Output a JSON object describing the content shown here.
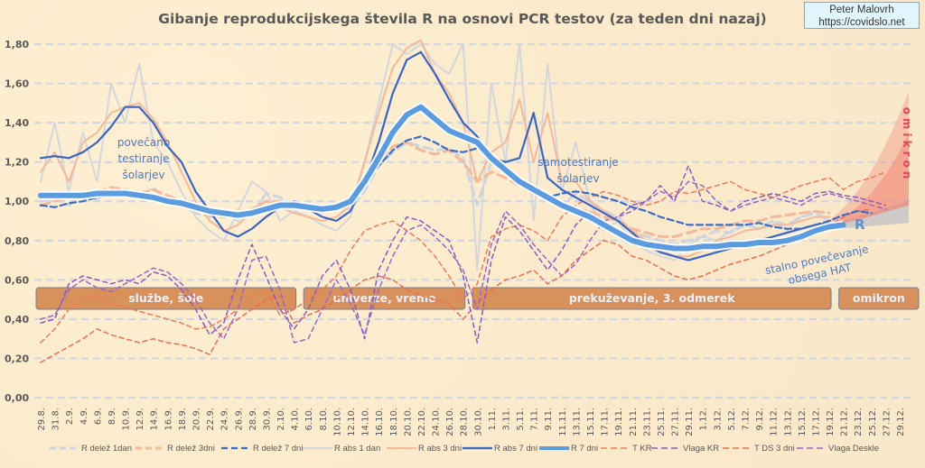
{
  "credit": {
    "author": "Peter Malovrh",
    "url": "https://covidslo.net"
  },
  "chart_data": {
    "type": "line",
    "title": "Gibanje reprodukcijskega števila R na osnovi PCR testov (za teden dni nazaj)",
    "xlabel": "",
    "ylabel": "",
    "ylim": [
      0,
      1.8
    ],
    "y_ticks": [
      "0,00",
      "0,20",
      "0,40",
      "0,60",
      "0,80",
      "1,00",
      "1,20",
      "1,40",
      "1,60",
      "1,80"
    ],
    "grid": true,
    "legend_position": "bottom",
    "x_tick_labels": [
      "29.8.",
      "31.8.",
      "2.9.",
      "4.9.",
      "6.9.",
      "8.9.",
      "10.9.",
      "12.9.",
      "14.9.",
      "16.9.",
      "18.9.",
      "20.9.",
      "22.9.",
      "24.9.",
      "26.9.",
      "28.9.",
      "30.9.",
      "2.10.",
      "4.10.",
      "6.10.",
      "8.10.",
      "10.10.",
      "12.10.",
      "14.10.",
      "16.10.",
      "18.10.",
      "20.10.",
      "22.10.",
      "24.10.",
      "26.10.",
      "28.10.",
      "30.10.",
      "1.11.",
      "3.11.",
      "5.11.",
      "7.11.",
      "9.11.",
      "11.11.",
      "13.11.",
      "15.11.",
      "17.11.",
      "19.11.",
      "21.11.",
      "23.11.",
      "25.11.",
      "27.11.",
      "29.11.",
      "1.12.",
      "3.12.",
      "5.12.",
      "7.12.",
      "9.12.",
      "11.12.",
      "13.12.",
      "15.12.",
      "17.12.",
      "19.12.",
      "21.12.",
      "23.12.",
      "25.12.",
      "27.12.",
      "29.12."
    ],
    "data_x_index_note": "values sampled every 2 days, aligned with x_tick_labels; null = no data",
    "series": [
      {
        "name": "R delež 1dan",
        "style": "dashed",
        "color": "#cfd5e0",
        "values": [
          1.0,
          1.02,
          0.98,
          1.04,
          1.01,
          1.06,
          1.05,
          1.02,
          1.07,
          1.0,
          0.98,
          0.94,
          0.92,
          0.95,
          0.9,
          0.93,
          1.04,
          1.02,
          0.98,
          0.96,
          0.94,
          0.97,
          0.96,
          1.05,
          1.18,
          1.25,
          1.3,
          1.28,
          1.26,
          1.27,
          1.22,
          0.98,
          1.2,
          1.15,
          1.1,
          1.08,
          1.02,
          0.98,
          1.04,
          1.0,
          0.95,
          0.92,
          0.85,
          0.82,
          0.8,
          0.78,
          0.8,
          0.82,
          0.85,
          0.84,
          0.88,
          0.86,
          0.9,
          0.88,
          0.92,
          0.94,
          0.9,
          null,
          null,
          null,
          null,
          null
        ]
      },
      {
        "name": "R delež 3dni",
        "style": "dashed",
        "color": "#f4b89a",
        "values": [
          0.98,
          1.0,
          1.02,
          1.03,
          1.05,
          1.07,
          1.06,
          1.04,
          1.06,
          1.03,
          1.0,
          0.96,
          0.93,
          0.92,
          0.93,
          0.96,
          1.0,
          1.0,
          0.97,
          0.96,
          0.95,
          0.98,
          1.02,
          1.1,
          1.2,
          1.28,
          1.3,
          1.26,
          1.24,
          1.26,
          1.2,
          1.1,
          1.15,
          1.12,
          1.08,
          1.05,
          1.02,
          0.98,
          0.96,
          0.95,
          0.92,
          0.9,
          0.86,
          0.84,
          0.82,
          0.82,
          0.84,
          0.86,
          0.86,
          0.88,
          0.9,
          0.9,
          0.92,
          0.93,
          0.94,
          0.95,
          0.94,
          null,
          null,
          null,
          null,
          null
        ]
      },
      {
        "name": "R delež 7 dni",
        "style": "dashed",
        "color": "#3b6cc7",
        "values": [
          0.98,
          0.97,
          0.99,
          1.0,
          1.02,
          1.03,
          1.03,
          1.02,
          1.01,
          1.0,
          0.98,
          0.96,
          0.95,
          0.94,
          0.94,
          0.95,
          0.97,
          0.99,
          1.0,
          0.98,
          0.97,
          0.98,
          1.0,
          1.08,
          1.18,
          1.26,
          1.31,
          1.33,
          1.3,
          1.26,
          1.25,
          1.27,
          1.22,
          1.15,
          1.1,
          1.05,
          1.02,
          1.04,
          1.05,
          1.04,
          1.02,
          1.0,
          0.97,
          0.95,
          0.92,
          0.9,
          0.88,
          0.88,
          0.88,
          0.88,
          0.88,
          0.89,
          0.87,
          0.86,
          0.86,
          0.88,
          0.9,
          0.93,
          0.95,
          0.94,
          null,
          null
        ]
      },
      {
        "name": "R abs 1 dan",
        "style": "solid",
        "color": "#d3d6dc",
        "values": [
          1.1,
          1.4,
          1.05,
          1.35,
          1.1,
          1.6,
          1.4,
          1.7,
          1.3,
          1.2,
          1.05,
          0.92,
          0.85,
          0.8,
          0.95,
          1.1,
          1.05,
          0.9,
          0.95,
          0.92,
          0.88,
          0.85,
          0.92,
          1.2,
          1.5,
          1.8,
          1.75,
          1.8,
          1.7,
          1.65,
          1.8,
          0.65,
          1.6,
          1.2,
          1.8,
          0.9,
          1.7,
          1.05,
          1.3,
          1.0,
          0.85,
          0.9,
          0.8,
          0.75,
          0.72,
          0.7,
          0.78,
          0.82,
          0.8,
          0.85,
          0.88,
          0.86,
          0.9,
          0.85,
          0.92,
          0.95,
          0.9,
          null,
          null,
          null,
          null,
          null
        ]
      },
      {
        "name": "R abs 3 dni",
        "style": "solid",
        "color": "#f5b998",
        "values": [
          1.15,
          1.25,
          1.1,
          1.3,
          1.35,
          1.45,
          1.48,
          1.5,
          1.42,
          1.3,
          1.15,
          1.0,
          0.9,
          0.85,
          0.88,
          0.95,
          1.0,
          0.97,
          0.94,
          0.92,
          0.9,
          0.92,
          0.98,
          1.2,
          1.45,
          1.68,
          1.78,
          1.82,
          1.65,
          1.55,
          1.4,
          1.1,
          1.25,
          1.3,
          1.52,
          1.2,
          1.45,
          1.1,
          1.1,
          1.0,
          0.95,
          0.9,
          0.85,
          0.8,
          0.75,
          0.72,
          0.72,
          0.75,
          0.8,
          0.82,
          0.85,
          0.86,
          0.88,
          0.88,
          0.9,
          0.92,
          0.92,
          null,
          null,
          null,
          null,
          null
        ]
      },
      {
        "name": "R abs 7 dni",
        "style": "solid",
        "color": "#3b65c4",
        "values": [
          1.22,
          1.23,
          1.22,
          1.25,
          1.3,
          1.38,
          1.48,
          1.48,
          1.4,
          1.28,
          1.2,
          1.05,
          0.95,
          0.85,
          0.82,
          0.86,
          0.92,
          0.97,
          1.0,
          0.96,
          0.92,
          0.9,
          0.95,
          1.1,
          1.3,
          1.55,
          1.72,
          1.76,
          1.65,
          1.52,
          1.4,
          1.33,
          1.22,
          1.2,
          1.22,
          1.45,
          1.12,
          1.06,
          1.02,
          0.98,
          0.94,
          0.9,
          0.84,
          0.78,
          0.74,
          0.72,
          0.7,
          0.72,
          0.74,
          0.76,
          0.78,
          0.8,
          0.82,
          0.84,
          0.86,
          0.88,
          0.89,
          null,
          null,
          null,
          null,
          null
        ]
      },
      {
        "name": "R 7 dni",
        "style": "thick",
        "color": "#5b9be0",
        "values": [
          1.03,
          1.03,
          1.03,
          1.03,
          1.04,
          1.04,
          1.04,
          1.03,
          1.02,
          1.0,
          0.99,
          0.97,
          0.95,
          0.94,
          0.93,
          0.94,
          0.96,
          0.98,
          0.98,
          0.97,
          0.96,
          0.97,
          1.0,
          1.1,
          1.22,
          1.35,
          1.44,
          1.48,
          1.42,
          1.36,
          1.33,
          1.3,
          1.22,
          1.16,
          1.1,
          1.06,
          1.02,
          0.98,
          0.95,
          0.92,
          0.88,
          0.84,
          0.8,
          0.78,
          0.77,
          0.76,
          0.76,
          0.77,
          0.77,
          0.78,
          0.78,
          0.79,
          0.79,
          0.8,
          0.82,
          0.85,
          0.87,
          0.88,
          null,
          null,
          null,
          null
        ]
      },
      {
        "name": "T KR",
        "style": "dashed",
        "color": "#f07a56",
        "values": [
          0.28,
          0.35,
          0.45,
          0.5,
          0.52,
          0.48,
          0.46,
          0.44,
          0.42,
          0.4,
          0.38,
          0.35,
          0.36,
          0.4,
          0.45,
          0.52,
          0.54,
          0.42,
          0.45,
          0.5,
          0.55,
          0.62,
          0.75,
          0.85,
          0.88,
          0.9,
          0.85,
          0.8,
          0.72,
          0.62,
          0.5,
          0.58,
          0.82,
          0.86,
          0.88,
          0.85,
          0.8,
          0.92,
          0.98,
          1.02,
          1.05,
          1.03,
          1.0,
          0.98,
          1.0,
          1.05,
          1.04,
          1.06,
          1.08,
          1.1,
          1.06,
          1.04,
          1.02,
          1.05,
          1.08,
          1.1,
          1.12,
          1.06,
          1.1,
          1.12,
          1.15,
          null
        ]
      },
      {
        "name": "Vlaga KR",
        "style": "dashed",
        "color": "#8a5bbf",
        "values": [
          0.38,
          0.4,
          0.58,
          0.62,
          0.6,
          0.58,
          0.6,
          0.58,
          0.64,
          0.62,
          0.55,
          0.45,
          0.32,
          0.38,
          0.6,
          0.78,
          0.62,
          0.45,
          0.35,
          0.45,
          0.62,
          0.7,
          0.55,
          0.3,
          0.65,
          0.8,
          0.92,
          0.9,
          0.85,
          0.8,
          0.62,
          0.28,
          0.7,
          0.92,
          0.85,
          0.75,
          0.65,
          0.75,
          0.88,
          0.95,
          0.9,
          0.92,
          0.98,
          1.0,
          1.08,
          1.0,
          1.18,
          1.0,
          0.98,
          0.95,
          1.0,
          1.02,
          1.04,
          1.02,
          1.0,
          1.04,
          1.05,
          1.03,
          1.02,
          1.0,
          0.98,
          null
        ]
      },
      {
        "name": "T DS 3 dni",
        "style": "dashed",
        "color": "#ec6e4f",
        "values": [
          0.18,
          0.22,
          0.26,
          0.3,
          0.35,
          0.32,
          0.3,
          0.28,
          0.3,
          0.28,
          0.27,
          0.25,
          0.22,
          0.35,
          0.4,
          0.45,
          0.5,
          0.52,
          0.38,
          0.42,
          0.45,
          0.5,
          0.55,
          0.6,
          0.62,
          0.6,
          0.55,
          0.52,
          0.5,
          0.48,
          0.4,
          0.48,
          0.55,
          0.6,
          0.62,
          0.65,
          0.58,
          0.62,
          0.7,
          0.75,
          0.8,
          0.78,
          0.72,
          0.7,
          0.66,
          0.62,
          0.6,
          0.62,
          0.65,
          0.68,
          0.7,
          0.72,
          0.75,
          0.78,
          0.82,
          0.85,
          0.88,
          0.92,
          0.95,
          0.96,
          null,
          null
        ]
      },
      {
        "name": "Vlaga Deskle",
        "style": "dashed",
        "color": "#9a66c8",
        "values": [
          0.4,
          0.42,
          0.55,
          0.6,
          0.56,
          0.54,
          0.58,
          0.62,
          0.66,
          0.64,
          0.58,
          0.5,
          0.38,
          0.3,
          0.45,
          0.7,
          0.72,
          0.55,
          0.28,
          0.3,
          0.45,
          0.6,
          0.48,
          0.32,
          0.55,
          0.72,
          0.85,
          0.88,
          0.82,
          0.75,
          0.65,
          0.45,
          0.78,
          0.95,
          0.88,
          0.78,
          0.7,
          0.62,
          0.68,
          0.8,
          0.9,
          0.92,
          0.95,
          1.0,
          1.05,
          1.02,
          1.1,
          1.08,
          1.0,
          0.95,
          0.98,
          1.0,
          1.02,
          1.0,
          0.98,
          1.02,
          1.04,
          1.02,
          1.0,
          0.98,
          0.96,
          null
        ]
      }
    ],
    "omicron_projection": {
      "label": "omikron",
      "start_index": 55,
      "end_index": 61,
      "lower_start": 0.86,
      "upper_end": 1.56,
      "inner_end": 1.35,
      "lower_end": 0.98,
      "color": "#f08070"
    },
    "periods": [
      {
        "label": "službe, šole",
        "start_index": 0,
        "end_index": 18
      },
      {
        "label": "univerze, vreme",
        "start_index": 19,
        "end_index": 30
      },
      {
        "label": "prekuževanje, 3. odmerek",
        "start_index": 31,
        "end_index": 56
      },
      {
        "label": "omikron",
        "start_index": 57,
        "end_index": 61
      }
    ],
    "annotations": [
      {
        "lines": [
          "povečano",
          "testiranje",
          "šolarjev"
        ]
      },
      {
        "lines": [
          "samotestiranje",
          "šolarjev"
        ]
      },
      {
        "lines": [
          "stalno povečevanje",
          "obsega HAT"
        ]
      },
      {
        "lines": [
          "R"
        ]
      }
    ]
  }
}
